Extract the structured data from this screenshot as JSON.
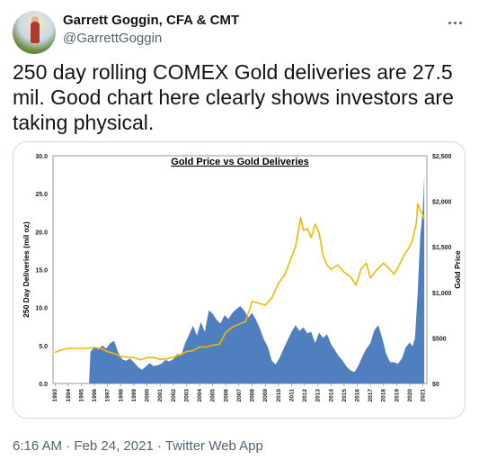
{
  "author": {
    "display_name": "Garrett Goggin, CFA & CMT",
    "handle": "@GarrettGoggin",
    "avatar_icon": "avatar-photo",
    "more_icon": "more-dots-icon"
  },
  "tweet": {
    "text": "250 day rolling COMEX Gold deliveries are 27.5 mil. Good chart here clearly shows investors are taking physical."
  },
  "meta": {
    "time": "6:16 AM",
    "separator": "·",
    "date": "Feb 24, 2021",
    "source": "Twitter Web App"
  },
  "chart_data": {
    "type": "area",
    "title": "Gold Price vs Gold Deliveries",
    "ylabel": "250 Day Deliveries (mil oz)",
    "y2label": "Gold Price",
    "ylim": [
      0,
      30
    ],
    "y2lim": [
      0,
      2500
    ],
    "yticks": [
      "30.0",
      "25.0",
      "20.0",
      "15.0",
      "10.0",
      "5.0",
      "0.0"
    ],
    "y2ticks": [
      "$2,500",
      "$2,000",
      "$1,500",
      "$1,000",
      "$500",
      "$0"
    ],
    "xticks": [
      "1993",
      "1994",
      "1995",
      "1996",
      "1997",
      "1998",
      "1999",
      "2000",
      "2001",
      "2002",
      "2003",
      "2004",
      "2005",
      "2006",
      "2007",
      "2008",
      "2009",
      "2010",
      "2011",
      "2012",
      "2013",
      "2014",
      "2015",
      "2016",
      "2017",
      "2018",
      "2019",
      "2020",
      "2021"
    ],
    "colors": {
      "deliveries": "#4f7fbf",
      "price": "#f2b800"
    },
    "series": [
      {
        "name": "Deliveries",
        "axis": "left",
        "x": [
          1995.6,
          1995.7,
          1996.0,
          1996.3,
          1996.6,
          1996.9,
          1997.2,
          1997.5,
          1997.8,
          1998.1,
          1998.4,
          1998.7,
          1999.0,
          1999.3,
          1999.6,
          1999.9,
          2000.2,
          2000.5,
          2000.8,
          2001.1,
          2001.4,
          2001.7,
          2002.0,
          2002.3,
          2002.6,
          2002.9,
          2003.2,
          2003.5,
          2003.8,
          2004.1,
          2004.4,
          2004.7,
          2005.0,
          2005.3,
          2005.6,
          2005.9,
          2006.2,
          2006.5,
          2006.8,
          2007.1,
          2007.4,
          2007.7,
          2008.0,
          2008.3,
          2008.6,
          2008.9,
          2009.2,
          2009.5,
          2009.8,
          2010.1,
          2010.4,
          2010.7,
          2011.0,
          2011.3,
          2011.6,
          2011.9,
          2012.2,
          2012.5,
          2012.8,
          2013.1,
          2013.4,
          2013.7,
          2014.0,
          2014.3,
          2014.6,
          2014.9,
          2015.2,
          2015.5,
          2015.8,
          2016.1,
          2016.4,
          2016.7,
          2017.0,
          2017.3,
          2017.6,
          2017.9,
          2018.2,
          2018.5,
          2018.8,
          2019.1,
          2019.4,
          2019.7,
          2020.0,
          2020.2,
          2020.4,
          2020.6,
          2020.8,
          2021.0,
          2021.1
        ],
        "values": [
          0.5,
          4.2,
          4.8,
          4.5,
          5.0,
          4.6,
          5.3,
          5.6,
          4.1,
          3.2,
          3.0,
          3.3,
          2.8,
          2.2,
          1.8,
          2.2,
          2.7,
          2.3,
          2.4,
          2.6,
          3.1,
          2.9,
          3.2,
          3.9,
          3.7,
          5.3,
          6.4,
          7.6,
          6.3,
          8.1,
          6.8,
          9.6,
          9.2,
          8.4,
          7.9,
          9.0,
          8.5,
          9.3,
          9.8,
          10.2,
          9.6,
          8.7,
          9.3,
          8.4,
          7.2,
          5.8,
          4.8,
          3.0,
          2.5,
          3.4,
          4.6,
          5.7,
          6.8,
          7.7,
          6.9,
          7.4,
          6.6,
          6.8,
          5.3,
          6.7,
          6.0,
          6.5,
          5.2,
          4.4,
          3.6,
          3.0,
          2.2,
          1.7,
          1.5,
          2.4,
          3.6,
          4.6,
          5.3,
          7.0,
          7.7,
          6.0,
          3.9,
          2.8,
          2.8,
          2.6,
          3.3,
          4.8,
          5.4,
          4.9,
          6.0,
          12.0,
          19.5,
          23.0,
          27.5
        ]
      },
      {
        "name": "Gold Price",
        "axis": "right",
        "x": [
          1993.0,
          1993.5,
          1994.0,
          1994.5,
          1995.0,
          1995.5,
          1996.0,
          1996.5,
          1997.0,
          1997.5,
          1998.0,
          1998.5,
          1999.0,
          1999.5,
          2000.0,
          2000.5,
          2001.0,
          2001.5,
          2002.0,
          2002.5,
          2003.0,
          2003.5,
          2004.0,
          2004.5,
          2005.0,
          2005.5,
          2006.0,
          2006.5,
          2007.0,
          2007.5,
          2008.0,
          2008.5,
          2009.0,
          2009.5,
          2010.0,
          2010.5,
          2011.0,
          2011.3,
          2011.7,
          2011.9,
          2012.2,
          2012.5,
          2012.8,
          2013.1,
          2013.4,
          2013.7,
          2014.0,
          2014.5,
          2015.0,
          2015.5,
          2015.9,
          2016.3,
          2016.7,
          2017.0,
          2017.5,
          2018.0,
          2018.5,
          2018.8,
          2019.2,
          2019.6,
          2019.9,
          2020.2,
          2020.5,
          2020.6,
          2020.8,
          2021.0,
          2021.1
        ],
        "values": [
          340,
          370,
          385,
          385,
          385,
          385,
          395,
          385,
          350,
          330,
          295,
          290,
          285,
          260,
          285,
          285,
          265,
          270,
          290,
          315,
          350,
          360,
          400,
          400,
          420,
          430,
          560,
          620,
          650,
          680,
          900,
          880,
          860,
          940,
          1100,
          1200,
          1390,
          1500,
          1820,
          1680,
          1700,
          1600,
          1750,
          1650,
          1400,
          1300,
          1250,
          1300,
          1220,
          1170,
          1080,
          1260,
          1320,
          1160,
          1250,
          1320,
          1250,
          1200,
          1300,
          1420,
          1480,
          1570,
          1760,
          1970,
          1900,
          1850,
          1800
        ]
      }
    ]
  }
}
